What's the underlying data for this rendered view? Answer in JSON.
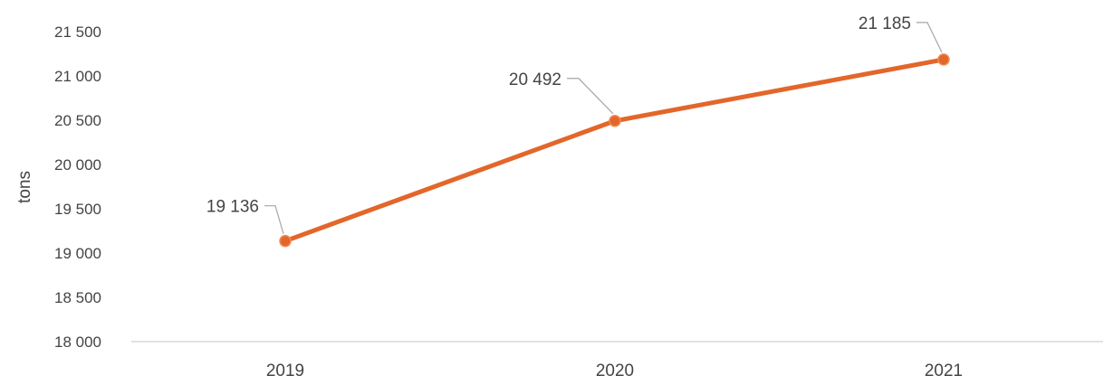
{
  "chart_data": {
    "type": "line",
    "title": "",
    "xlabel": "",
    "ylabel": "tons",
    "categories": [
      "2019",
      "2020",
      "2021"
    ],
    "series": [
      {
        "values": [
          19136,
          20492,
          21185
        ]
      }
    ],
    "data_labels": [
      "19 136",
      "20 492",
      "21 185"
    ],
    "y_ticks": [
      18000,
      18500,
      19000,
      19500,
      20000,
      20500,
      21000,
      21500
    ],
    "y_tick_labels": [
      "18 000",
      "18 500",
      "19 000",
      "19 500",
      "20 000",
      "20 500",
      "21 000",
      "21 500"
    ],
    "ylim": [
      18000,
      21500
    ],
    "grid": false,
    "legend": "none",
    "colors": {
      "line": "#e3662a",
      "axis": "#d9d9d9",
      "leader": "#a6a6a6",
      "text": "#444444"
    }
  }
}
